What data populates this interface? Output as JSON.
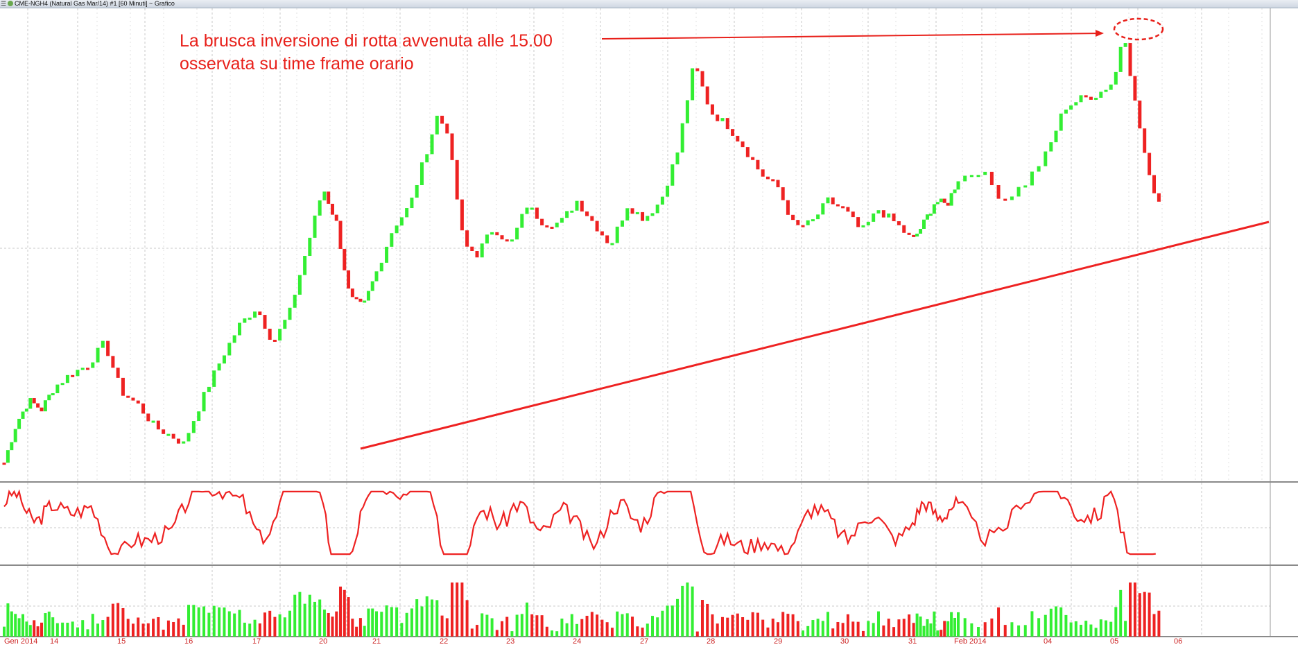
{
  "window": {
    "title": "CME-NGH4 (Natural Gas  Mar/14) #1 [60 Minuti] ~ Grafico"
  },
  "annotation": {
    "line1": "La brusca inversione di rotta avvenuta alle 15.00",
    "line2": "osservata su time frame orario"
  },
  "colors": {
    "up": "#33ee33",
    "down": "#ee2222",
    "annotation": "#e8201a",
    "grid": "#c8c8c8",
    "axis_text": "#cc2222"
  },
  "chart_data": {
    "type": "candlestick",
    "panels": [
      "price",
      "oscillator",
      "volume"
    ],
    "x_tick_labels": [
      "Gen 2014",
      "14",
      "15",
      "16",
      "17",
      "20",
      "21",
      "22",
      "23",
      "24",
      "27",
      "28",
      "29",
      "30",
      "31",
      "Feb 2014",
      "04",
      "05",
      "06"
    ],
    "price_path_relative": [
      [
        0,
        0.02
      ],
      [
        0.25,
        0.11
      ],
      [
        0.5,
        0.16
      ],
      [
        0.75,
        0.14
      ],
      [
        1.0,
        0.19
      ],
      [
        1.25,
        0.22
      ],
      [
        1.5,
        0.24
      ],
      [
        1.75,
        0.29
      ],
      [
        2.0,
        0.18
      ],
      [
        2.25,
        0.15
      ],
      [
        2.5,
        0.1
      ],
      [
        2.75,
        0.08
      ],
      [
        2.95,
        0.06
      ],
      [
        3.0,
        0.09
      ],
      [
        3.25,
        0.18
      ],
      [
        3.5,
        0.26
      ],
      [
        3.75,
        0.33
      ],
      [
        4.0,
        0.37
      ],
      [
        4.25,
        0.29
      ],
      [
        4.5,
        0.36
      ],
      [
        4.75,
        0.5
      ],
      [
        5.0,
        0.64
      ],
      [
        5.25,
        0.56
      ],
      [
        5.5,
        0.39
      ],
      [
        5.75,
        0.37
      ],
      [
        6.0,
        0.45
      ],
      [
        6.25,
        0.55
      ],
      [
        6.5,
        0.6
      ],
      [
        6.9,
        0.8
      ],
      [
        7.05,
        0.77
      ],
      [
        7.3,
        0.51
      ],
      [
        7.5,
        0.49
      ],
      [
        7.75,
        0.55
      ],
      [
        8.0,
        0.51
      ],
      [
        8.25,
        0.6
      ],
      [
        8.5,
        0.56
      ],
      [
        8.75,
        0.56
      ],
      [
        9.0,
        0.61
      ],
      [
        9.25,
        0.56
      ],
      [
        9.5,
        0.51
      ],
      [
        9.75,
        0.6
      ],
      [
        10.0,
        0.57
      ],
      [
        10.25,
        0.61
      ],
      [
        10.5,
        0.72
      ],
      [
        10.75,
        0.92
      ],
      [
        11.0,
        0.81
      ],
      [
        11.25,
        0.78
      ],
      [
        11.5,
        0.73
      ],
      [
        11.75,
        0.67
      ],
      [
        12.0,
        0.64
      ],
      [
        12.25,
        0.55
      ],
      [
        12.5,
        0.56
      ],
      [
        12.75,
        0.61
      ],
      [
        13.0,
        0.59
      ],
      [
        13.25,
        0.54
      ],
      [
        13.5,
        0.59
      ],
      [
        13.75,
        0.56
      ],
      [
        14.0,
        0.52
      ],
      [
        14.25,
        0.56
      ],
      [
        14.5,
        0.61
      ],
      [
        14.75,
        0.6
      ],
      [
        15.0,
        0.66
      ],
      [
        15.25,
        0.68
      ],
      [
        15.5,
        0.61
      ],
      [
        15.75,
        0.65
      ],
      [
        16.0,
        0.72
      ],
      [
        16.25,
        0.82
      ],
      [
        16.5,
        0.84
      ],
      [
        16.75,
        0.85
      ],
      [
        17.0,
        0.88
      ],
      [
        17.15,
        1.0
      ],
      [
        17.3,
        0.85
      ],
      [
        17.55,
        0.66
      ],
      [
        17.7,
        0.61
      ]
    ]
  }
}
